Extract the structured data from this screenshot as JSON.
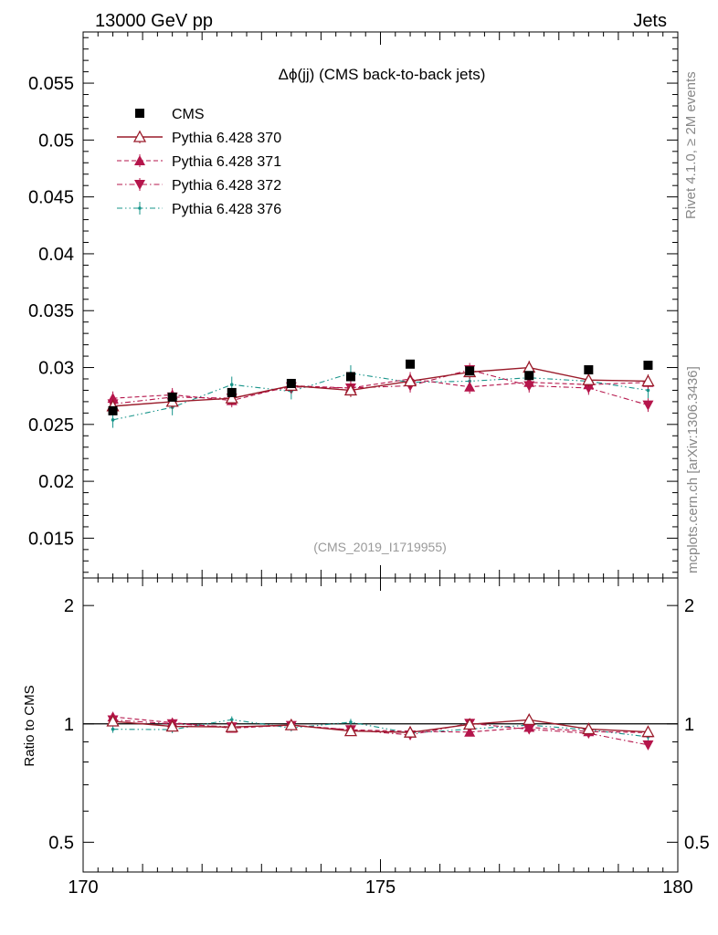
{
  "header": {
    "left": "13000 GeV pp",
    "right": "Jets"
  },
  "side_labels": {
    "rivet": "Rivet 4.1.0, ≥ 2M events",
    "mcplots": "mcplots.cern.ch [arXiv:1306.3436]"
  },
  "chart_data": [
    {
      "panel": "main",
      "type": "line",
      "title": "Δϕ(jj) (CMS back-to-back jets)",
      "reference": "(CMS_2019_I1719955)",
      "xlabel": "",
      "ylabel": "",
      "xlim": [
        170,
        180
      ],
      "ylim": [
        0.0115,
        0.0595
      ],
      "x_ticks": [
        "170",
        "175",
        "180"
      ],
      "y_ticks": [
        "0.015",
        "0.02",
        "0.025",
        "0.03",
        "0.035",
        "0.04",
        "0.045",
        "0.05",
        "0.055"
      ],
      "x": [
        170.5,
        171.5,
        172.5,
        173.5,
        174.5,
        175.5,
        176.5,
        177.5,
        178.5,
        179.5
      ],
      "series": [
        {
          "name": "CMS",
          "style": "data",
          "color": "#000000",
          "values": [
            0.0262,
            0.0274,
            0.0278,
            0.0286,
            0.0292,
            0.0303,
            0.0297,
            0.0293,
            0.0298,
            0.0302
          ]
        },
        {
          "name": "Pythia 6.428 370",
          "style": "solid",
          "marker": "triangle-up-open",
          "color": "#9a1b2a",
          "values": [
            0.0266,
            0.027,
            0.0273,
            0.0284,
            0.028,
            0.0288,
            0.0296,
            0.03,
            0.0289,
            0.0288
          ],
          "errors": [
            0.0006,
            0.0006,
            0.0006,
            0.0006,
            0.0006,
            0.0006,
            0.0006,
            0.0006,
            0.0006,
            0.0006
          ]
        },
        {
          "name": "Pythia 6.428 371",
          "style": "dashed",
          "marker": "triangle-up",
          "color": "#b5154b",
          "values": [
            0.0273,
            0.0276,
            0.0271,
            0.0284,
            0.0282,
            0.029,
            0.0283,
            0.0287,
            0.0285,
            0.0287
          ],
          "errors": [
            0.0006,
            0.0006,
            0.0006,
            0.0006,
            0.0006,
            0.0006,
            0.0006,
            0.0006,
            0.0006,
            0.0006
          ]
        },
        {
          "name": "Pythia 6.428 372",
          "style": "dashdot",
          "marker": "triangle-down",
          "color": "#b5154b",
          "values": [
            0.0268,
            0.0274,
            0.0273,
            0.0283,
            0.0282,
            0.0284,
            0.0298,
            0.0284,
            0.0282,
            0.0267
          ],
          "errors": [
            0.0006,
            0.0006,
            0.0006,
            0.0006,
            0.0006,
            0.0006,
            0.0006,
            0.0006,
            0.0006,
            0.0006
          ]
        },
        {
          "name": "Pythia 6.428 376",
          "style": "dashdotdot",
          "marker": "dot",
          "color": "#17948a",
          "values": [
            0.0254,
            0.0265,
            0.0285,
            0.0279,
            0.0295,
            0.0287,
            0.0288,
            0.0291,
            0.0288,
            0.028
          ],
          "errors": [
            0.0007,
            0.0007,
            0.0007,
            0.0007,
            0.0007,
            0.0007,
            0.0007,
            0.0007,
            0.0007,
            0.0007
          ]
        }
      ]
    },
    {
      "panel": "ratio",
      "type": "line",
      "ylabel": "Ratio to CMS",
      "xlim": [
        170,
        180
      ],
      "ylim": [
        0.42,
        2.35
      ],
      "yscale": "log",
      "x_ticks": [
        "170",
        "175",
        "180"
      ],
      "y_ticks": [
        "0.5",
        "1",
        "2"
      ],
      "reference_line": 1,
      "x": [
        170.5,
        171.5,
        172.5,
        173.5,
        174.5,
        175.5,
        176.5,
        177.5,
        178.5,
        179.5
      ],
      "series": [
        {
          "name": "Pythia 6.428 370",
          "values": [
            1.015,
            0.985,
            0.982,
            0.993,
            0.959,
            0.951,
            0.997,
            1.024,
            0.97,
            0.954
          ]
        },
        {
          "name": "Pythia 6.428 371",
          "values": [
            1.042,
            1.007,
            0.975,
            0.993,
            0.966,
            0.957,
            0.953,
            0.98,
            0.956,
            0.95
          ]
        },
        {
          "name": "Pythia 6.428 372",
          "values": [
            1.023,
            1.0,
            0.982,
            0.99,
            0.966,
            0.937,
            1.003,
            0.969,
            0.946,
            0.884
          ]
        },
        {
          "name": "Pythia 6.428 376",
          "values": [
            0.969,
            0.967,
            1.025,
            0.976,
            1.01,
            0.947,
            0.97,
            0.993,
            0.966,
            0.927
          ]
        }
      ]
    }
  ]
}
